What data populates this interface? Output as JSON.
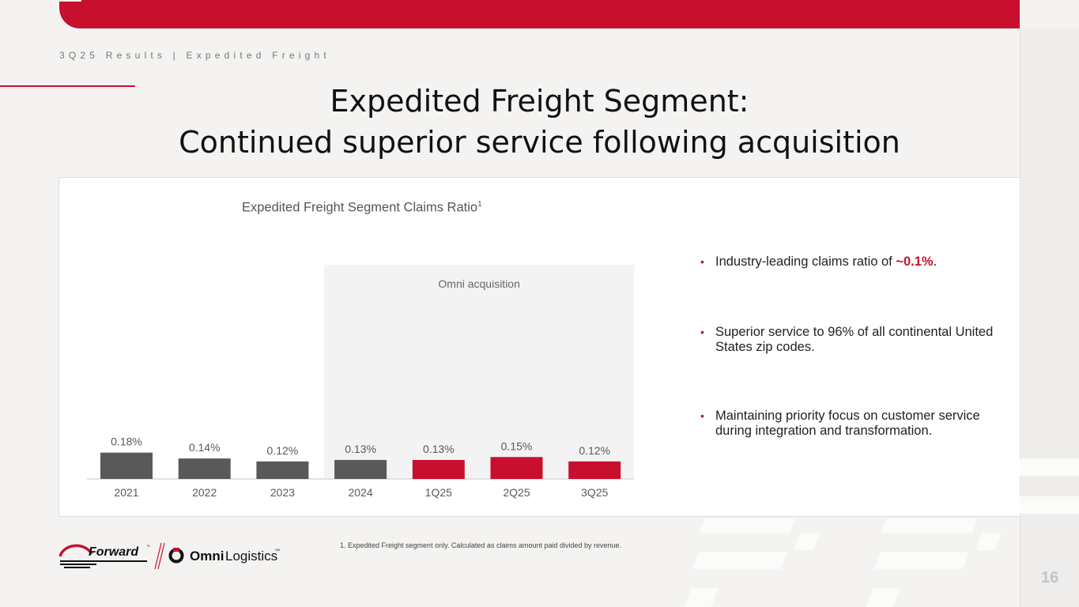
{
  "header": {
    "breadcrumb": "3Q25 Results | Expedited Freight",
    "title_line1": "Expedited Freight Segment:",
    "title_line2": "Continued superior service following acquisition"
  },
  "chart": {
    "title": "Expedited Freight Segment Claims Ratio",
    "title_sup": "1",
    "shaded_label": "Omni acquisition"
  },
  "chart_data": {
    "type": "bar",
    "title": "Expedited Freight Segment Claims Ratio",
    "categories": [
      "2021",
      "2022",
      "2023",
      "2024",
      "1Q25",
      "2Q25",
      "3Q25"
    ],
    "values": [
      0.18,
      0.14,
      0.12,
      0.13,
      0.13,
      0.15,
      0.12
    ],
    "labels": [
      "0.18%",
      "0.14%",
      "0.12%",
      "0.13%",
      "0.13%",
      "0.15%",
      "0.12%"
    ],
    "colors": [
      "#595959",
      "#595959",
      "#595959",
      "#595959",
      "#c8102e",
      "#c8102e",
      "#c8102e"
    ],
    "shaded_region": {
      "from": "2024",
      "to": "3Q25",
      "label": "Omni acquisition"
    },
    "ylim": [
      0,
      1.0
    ],
    "grid": false,
    "legend": "none"
  },
  "bullets": [
    {
      "before": "Industry-leading claims ratio of ",
      "highlight": "~0.1%",
      "after": "."
    },
    {
      "before": "Superior service to 96% of all continental United States zip codes.",
      "highlight": "",
      "after": ""
    },
    {
      "before": "Maintaining priority focus on customer service during integration and transformation.",
      "highlight": "",
      "after": ""
    }
  ],
  "bullet_marker": "•",
  "logos": {
    "forward": "Forward",
    "tm": "™",
    "omni_bold": "Omni",
    "omni_light": "Logistics",
    "sm": "SM"
  },
  "footnote": "1. Expedited Freight segment only. Calculated as claims amount paid divided by revenue.",
  "page_number": "16",
  "colors": {
    "brand_red": "#c8102e",
    "bar_gray": "#595959"
  }
}
